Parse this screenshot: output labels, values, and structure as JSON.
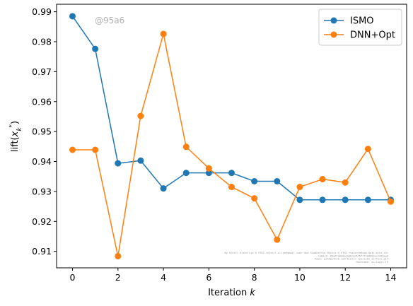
{
  "chart_data": {
    "type": "line",
    "x": [
      0,
      1,
      2,
      3,
      4,
      5,
      6,
      7,
      8,
      9,
      10,
      11,
      12,
      13,
      14
    ],
    "series": [
      {
        "name": "ISMO",
        "color": "#1f77b4",
        "values": [
          0.9885,
          0.9776,
          0.9394,
          0.9403,
          0.931,
          0.9362,
          0.9362,
          0.9362,
          0.9334,
          0.9334,
          0.9272,
          0.9272,
          0.9272,
          0.9272,
          0.9272
        ]
      },
      {
        "name": "DNN+Opt",
        "color": "#ff7f0e",
        "values": [
          0.9439,
          0.9439,
          0.9084,
          0.9552,
          0.9826,
          0.9449,
          0.9377,
          0.9315,
          0.9277,
          0.9139,
          0.9315,
          0.9341,
          0.933,
          0.9442,
          0.9266
        ]
      }
    ],
    "xlabel_text": "Iteration ",
    "xlabel_var": "k",
    "ylabel": "lift(x*k)",
    "xlim": [
      -0.7,
      14.7
    ],
    "ylim": [
      0.9045,
      0.9925
    ],
    "xticks": [
      0,
      2,
      4,
      6,
      8,
      10,
      12,
      14
    ],
    "yticks": [
      0.91,
      0.92,
      0.93,
      0.94,
      0.95,
      0.96,
      0.97,
      0.98,
      0.99
    ],
    "legend_position": "top-right",
    "grid": false,
    "watermark": "@95a6",
    "credit_lines": [
      "By Kjetil Olsen Lye @ ETHZ <kjetil.o.lye@gmail.com> and Siddhartha Mishra @ ETHZ <smishra@sam.math.ethz.ch>",
      "Commit: 95a67a6d0eeb0b22d5f577f4b86d2ee1ddbaa0",
      "Repo: git@github.com:kjetil-lye/ismo_airfoil.git",
      "Hostname: eu-login-19"
    ]
  }
}
